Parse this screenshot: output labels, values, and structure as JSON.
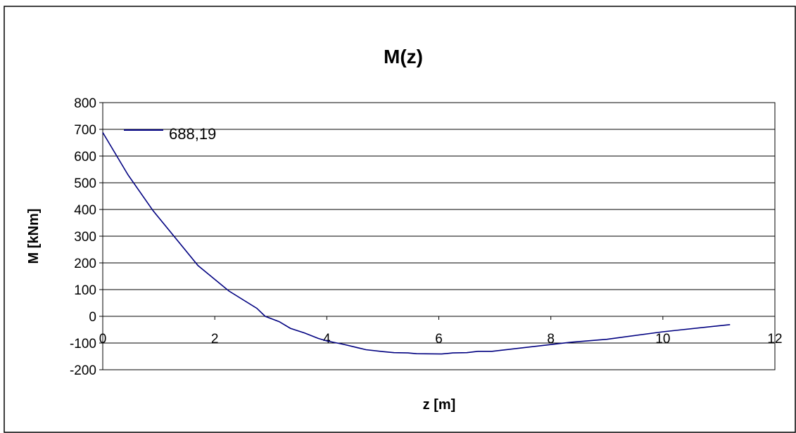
{
  "chart_data": {
    "type": "line",
    "title": "M(z)",
    "xlabel": "z [m]",
    "ylabel": "M [kNm]",
    "xlim": [
      0,
      12
    ],
    "ylim": [
      -200,
      800
    ],
    "x_ticks": [
      "0",
      "2",
      "4",
      "6",
      "8",
      "10",
      "12"
    ],
    "y_ticks": [
      "800",
      "700",
      "600",
      "500",
      "400",
      "300",
      "200",
      "100",
      "0",
      "-100",
      "-200"
    ],
    "grid": "horizontal",
    "legend_position": "top-left",
    "series": [
      {
        "name": "688,19",
        "color": "#000080",
        "x": [
          0,
          0.45,
          0.9,
          1.35,
          1.7,
          2.25,
          2.75,
          2.9,
          3.15,
          3.35,
          3.6,
          3.85,
          4.0,
          4.3,
          4.7,
          5.0,
          5.2,
          5.45,
          5.6,
          6.05,
          6.25,
          6.5,
          6.7,
          6.95,
          8.35,
          9.0,
          10.0,
          11.2
        ],
        "y": [
          688.19,
          530,
          395,
          280,
          190,
          95,
          30,
          0,
          -20,
          -45,
          -62,
          -83,
          -92,
          -105,
          -125,
          -132,
          -136,
          -137,
          -140,
          -141,
          -137,
          -136,
          -131,
          -131,
          -97,
          -86,
          -58,
          -31
        ]
      }
    ]
  }
}
